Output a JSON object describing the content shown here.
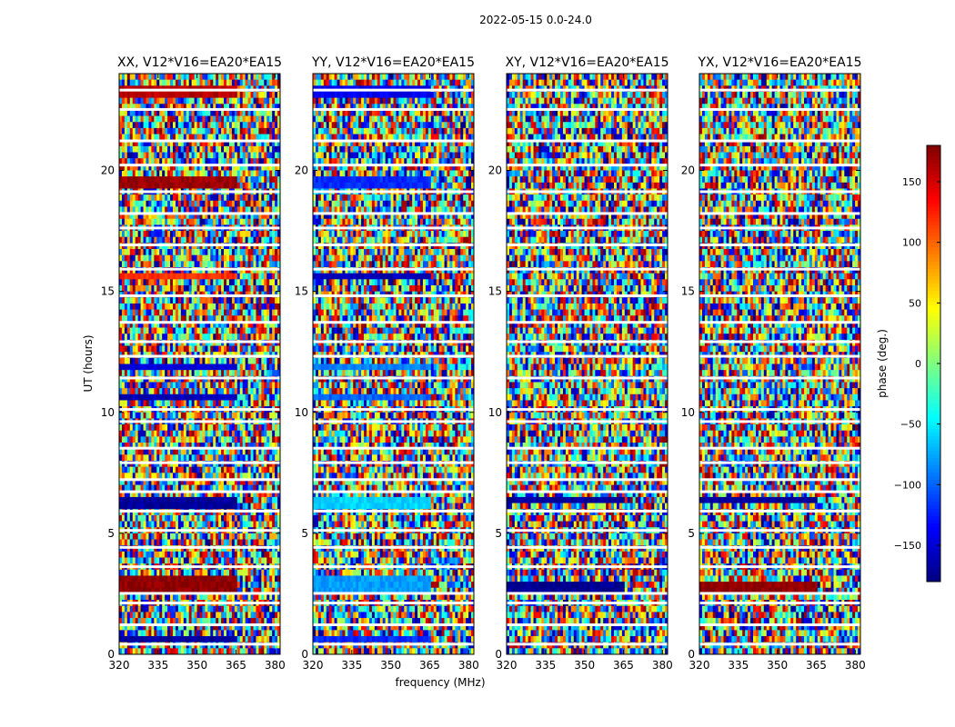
{
  "figure": {
    "suptitle": "2022-05-15 0.0-24.0"
  },
  "chart_data": {
    "type": "heatmap",
    "title": "2022-05-15 0.0-24.0",
    "xlabel": "frequency (MHz)",
    "ylabel": "UT (hours)",
    "xlim": [
      320,
      382
    ],
    "ylim": [
      0,
      24
    ],
    "x_ticks": [
      "320",
      "335",
      "350",
      "365",
      "380"
    ],
    "y_ticks": [
      "0",
      "5",
      "10",
      "15",
      "20"
    ],
    "panels": [
      {
        "title": "XX, V12*V16=EA20*EA15",
        "coherent_bands_hours": [
          [
            23.1,
            23.6
          ],
          [
            19.2,
            19.8
          ],
          [
            15.5,
            15.8
          ],
          [
            11.8,
            12.1
          ],
          [
            10.4,
            10.7
          ],
          [
            6.1,
            6.5
          ],
          [
            2.6,
            3.2
          ],
          [
            0.6,
            0.8
          ]
        ],
        "coherent_phase_deg": [
          160,
          170,
          120,
          -150,
          -160,
          -170,
          175,
          -170
        ]
      },
      {
        "title": "YY, V12*V16=EA20*EA15",
        "coherent_bands_hours": [
          [
            23.1,
            23.6
          ],
          [
            19.2,
            19.8
          ],
          [
            15.5,
            15.8
          ],
          [
            11.8,
            12.1
          ],
          [
            10.4,
            10.7
          ],
          [
            6.1,
            6.5
          ],
          [
            2.6,
            3.2
          ],
          [
            0.6,
            0.8
          ]
        ],
        "coherent_phase_deg": [
          -140,
          -120,
          -160,
          -90,
          -100,
          -60,
          -80,
          -120
        ]
      },
      {
        "title": "XY, V12*V16=EA20*EA15",
        "coherent_bands_hours": [
          [
            2.6,
            3.1
          ],
          [
            6.3,
            6.5
          ]
        ],
        "coherent_phase_deg": [
          -175,
          -170
        ]
      },
      {
        "title": "YX, V12*V16=EA20*EA15",
        "coherent_bands_hours": [
          [
            2.6,
            3.1
          ],
          [
            6.3,
            6.5
          ]
        ],
        "coherent_phase_deg": [
          175,
          -170
        ]
      }
    ],
    "flagged_rows_hours": [
      23.3,
      22.5,
      21.2,
      20.2,
      19.1,
      18.2,
      17.6,
      16.9,
      15.9,
      14.8,
      13.7,
      12.9,
      12.3,
      11.4,
      10.1,
      9.6,
      8.5,
      7.9,
      7.2,
      6.7,
      5.9,
      5.1,
      4.4,
      3.6,
      2.5,
      2.1,
      1.2,
      0.4
    ],
    "colorbar": {
      "label": "phase (deg.)",
      "range": [
        -180,
        180
      ],
      "ticks": [
        "150",
        "100",
        "50",
        "0",
        "−50",
        "−100",
        "−150"
      ],
      "tick_values": [
        150,
        100,
        50,
        0,
        -50,
        -100,
        -150
      ],
      "colormap": "jet"
    }
  }
}
